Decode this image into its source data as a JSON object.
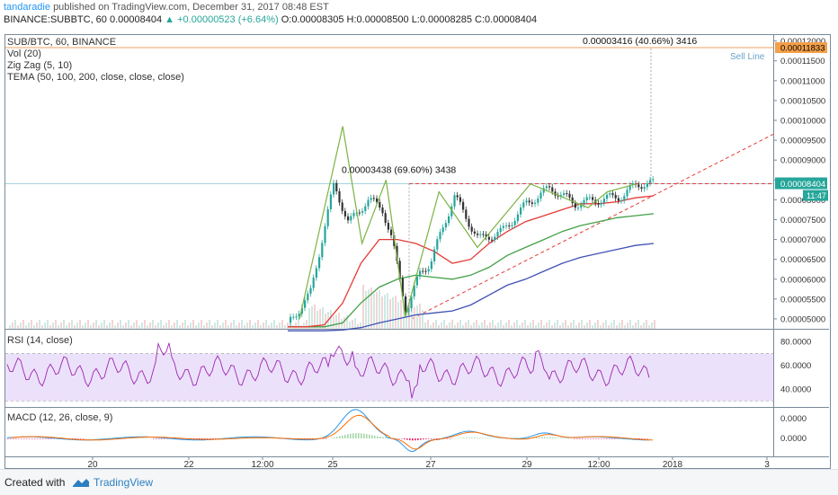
{
  "header": {
    "line1_user": "tandaradie",
    "line1_rest": "published on TradingView.com, December 31, 2017 08:48 EST",
    "line2_symbol": "BINANCE:SUBBTC, 60",
    "line2_price": "0.00008404",
    "line2_change": "+0.00000523 (+6.64%)",
    "line2_ohlc": "O:0.00008305 H:0.00008500 L:0.00008285 C:0.00008404"
  },
  "price_pane": {
    "labels": [
      "SUB/BTC, 60, BINANCE",
      "Vol (20)",
      "Zig Zag (5, 10)",
      "TEMA (50, 100, 200, close, close, close)"
    ],
    "axis_ticks": [
      "0.00012000",
      "0.00011500",
      "0.00011000",
      "0.00010500",
      "0.00010000",
      "0.00009500",
      "0.00009000",
      "0.00008500",
      "0.00008000",
      "0.00007500",
      "0.00007000",
      "0.00006500",
      "0.00006000",
      "0.00005500",
      "0.00005000"
    ],
    "sell_line_value": "0.00011833",
    "sell_line_label": "Sell Line",
    "current_price": "0.00008404",
    "countdown": "11:47",
    "annotation_top": "0.00003416 (40.66%) 3416",
    "annotation_mid": "0.00003438 (69.60%) 3438"
  },
  "rsi_pane": {
    "label": "RSI (14, close)",
    "axis_ticks": [
      "80.0000",
      "60.0000",
      "40.0000"
    ]
  },
  "macd_pane": {
    "label": "MACD (12, 26, close, 9)",
    "axis_ticks": [
      "0.0000",
      "0.0000"
    ]
  },
  "time_axis": {
    "ticks": [
      "20",
      "22",
      "12:00",
      "25",
      "27",
      "29",
      "12:00",
      "2018",
      "3"
    ]
  },
  "footer": {
    "created": "Created with",
    "brand": "TradingView"
  },
  "colors": {
    "up": "#26a69a",
    "down": "#333333",
    "zigzag": "#7cb342",
    "tema50": "#e53935",
    "tema100": "#43a047",
    "tema200": "#3f51b5",
    "rsi": "#9c27b0",
    "rsi_band": "#ece1fa",
    "macd": "#2196f3",
    "signal": "#ff6d00",
    "hist": "#e91e63",
    "sell_line": "#f0a060",
    "trend": "#e53935"
  },
  "chart_data": {
    "type": "candlestick",
    "title": "SUB/BTC, 60, BINANCE",
    "ylim": [
      4.75e-05,
      0.0001215
    ],
    "x_ticks": [
      "20",
      "22",
      "12:00",
      "25",
      "27",
      "29",
      "12:00",
      "2018",
      "3"
    ],
    "close_points": [
      {
        "x": "19",
        "y": 4.8e-05
      },
      {
        "x": "22",
        "y": 4.8e-05
      },
      {
        "x": "24",
        "y": 4.82e-05
      },
      {
        "x": "24.5",
        "y": 5.6e-05
      },
      {
        "x": "25",
        "y": 8.4e-05
      },
      {
        "x": "25.3",
        "y": 7.4e-05
      },
      {
        "x": "25.7",
        "y": 8e-05
      },
      {
        "x": "26",
        "y": 7.8e-05
      },
      {
        "x": "26.2",
        "y": 7e-05
      },
      {
        "x": "26.5",
        "y": 5.2e-05
      },
      {
        "x": "26.8",
        "y": 6.2e-05
      },
      {
        "x": "27",
        "y": 6.4e-05
      },
      {
        "x": "27.5",
        "y": 8.1e-05
      },
      {
        "x": "28",
        "y": 7e-05
      },
      {
        "x": "28.5",
        "y": 7.2e-05
      },
      {
        "x": "29",
        "y": 7.9e-05
      },
      {
        "x": "29.5",
        "y": 8.3e-05
      },
      {
        "x": "30",
        "y": 7.9e-05
      },
      {
        "x": "30.5",
        "y": 8e-05
      },
      {
        "x": "31",
        "y": 8.1e-05
      },
      {
        "x": "31.3",
        "y": 8.4e-05
      }
    ],
    "tema_50": [
      4.8e-05,
      4.8e-05,
      4.85e-05,
      5.4e-05,
      6.4e-05,
      7e-05,
      7e-05,
      6.9e-05,
      6.7e-05,
      6.4e-05,
      6.5e-05,
      6.9e-05,
      7.2e-05,
      7.45e-05,
      7.6e-05,
      7.75e-05,
      7.9e-05,
      7.9e-05,
      7.95e-05,
      8.05e-05,
      8.1e-05
    ],
    "tema_100": [
      4.8e-05,
      4.8e-05,
      4.8e-05,
      4.9e-05,
      5.4e-05,
      5.8e-05,
      6e-05,
      6.1e-05,
      6.05e-05,
      6e-05,
      6.1e-05,
      6.3e-05,
      6.6e-05,
      6.8e-05,
      7e-05,
      7.2e-05,
      7.35e-05,
      7.45e-05,
      7.55e-05,
      7.6e-05,
      7.65e-05
    ],
    "tema_200": [
      4.7e-05,
      4.7e-05,
      4.7e-05,
      4.72e-05,
      4.78e-05,
      4.9e-05,
      5e-05,
      5.1e-05,
      5.15e-05,
      5.2e-05,
      5.35e-05,
      5.6e-05,
      5.85e-05,
      6e-05,
      6.2e-05,
      6.4e-05,
      6.55e-05,
      6.65e-05,
      6.75e-05,
      6.85e-05,
      6.9e-05
    ],
    "zigzag": [
      {
        "x": "24.3",
        "y": 5e-05
      },
      {
        "x": "25.2",
        "y": 9.85e-05
      },
      {
        "x": "25.6",
        "y": 6.9e-05
      },
      {
        "x": "26.1",
        "y": 8.5e-05
      },
      {
        "x": "26.5",
        "y": 5.05e-05
      },
      {
        "x": "27.2",
        "y": 8.2e-05
      },
      {
        "x": "28.0",
        "y": 6.8e-05
      },
      {
        "x": "29.1",
        "y": 8.4e-05
      },
      {
        "x": "30.3",
        "y": 7.8e-05
      },
      {
        "x": "30.7",
        "y": 8.2e-05
      },
      {
        "x": "31.3",
        "y": 8.4e-05
      }
    ],
    "sell_line": 0.00011833,
    "resistance": 8.404e-05
  }
}
